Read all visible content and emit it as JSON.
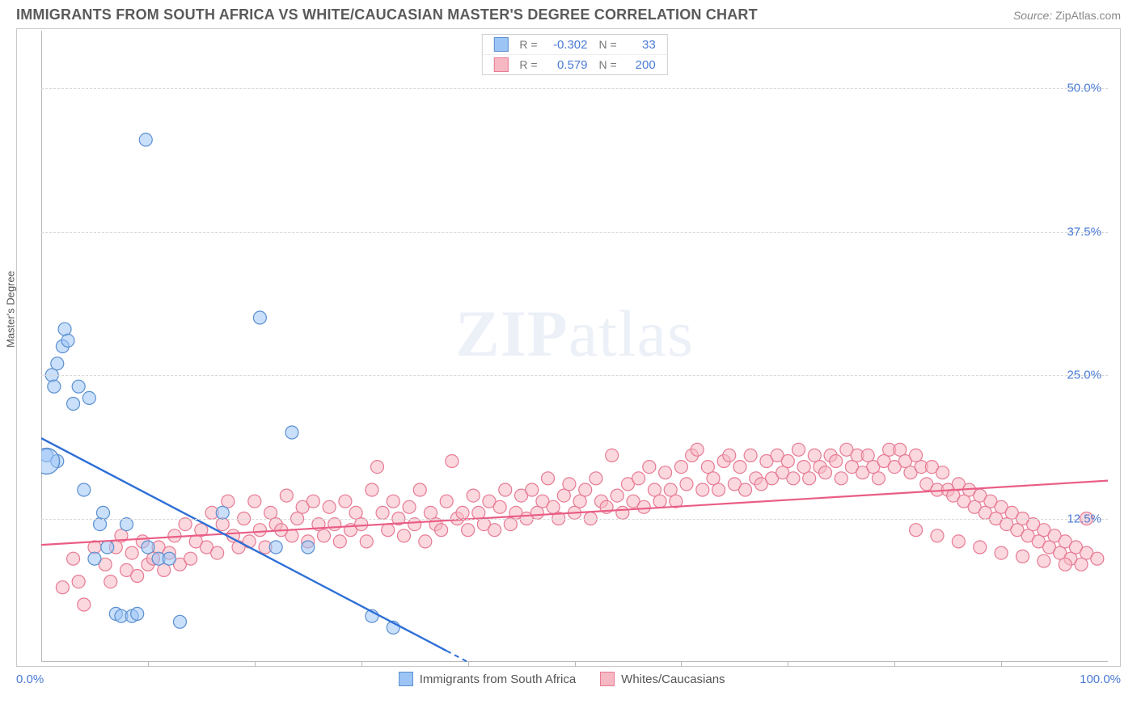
{
  "header": {
    "title": "IMMIGRANTS FROM SOUTH AFRICA VS WHITE/CAUCASIAN MASTER'S DEGREE CORRELATION CHART",
    "source_label": "Source:",
    "source_value": "ZipAtlas.com"
  },
  "watermark": {
    "left": "ZIP",
    "right": "atlas"
  },
  "chart": {
    "type": "scatter",
    "ylabel": "Master's Degree",
    "xlim": [
      0,
      100
    ],
    "ylim": [
      0,
      55
    ],
    "xaxis_label_left": "0.0%",
    "xaxis_label_right": "100.0%",
    "yticks": [
      12.5,
      25.0,
      37.5,
      50.0
    ],
    "ytick_labels": [
      "12.5%",
      "25.0%",
      "37.5%",
      "50.0%"
    ],
    "grid_color": "#d8d8d8",
    "background_color": "#ffffff",
    "xticks_count": 10,
    "series_a": {
      "name": "Immigrants from South Africa",
      "color": "#9cc4f5",
      "stroke": "#5a8fd0",
      "line_color": "#2e6fd6",
      "r": "-0.302",
      "n": "33",
      "reg": {
        "x1": 0,
        "y1": 19.5,
        "x2": 40,
        "y2": 0
      },
      "marker_r": 8,
      "points": [
        [
          0.5,
          18
        ],
        [
          1,
          25
        ],
        [
          1.2,
          24
        ],
        [
          1.5,
          26
        ],
        [
          2,
          27.5
        ],
        [
          2.2,
          29
        ],
        [
          2.5,
          28
        ],
        [
          3,
          22.5
        ],
        [
          3.5,
          24
        ],
        [
          4,
          15
        ],
        [
          4.5,
          23
        ],
        [
          5,
          9
        ],
        [
          5.5,
          12
        ],
        [
          5.8,
          13
        ],
        [
          6.2,
          10
        ],
        [
          7,
          4.2
        ],
        [
          7.5,
          4
        ],
        [
          8,
          12
        ],
        [
          8.5,
          4
        ],
        [
          9,
          4.2
        ],
        [
          9.8,
          45.5
        ],
        [
          10,
          10
        ],
        [
          11,
          9
        ],
        [
          12,
          9
        ],
        [
          13,
          3.5
        ],
        [
          17,
          13
        ],
        [
          20.5,
          30
        ],
        [
          22,
          10
        ],
        [
          23.5,
          20
        ],
        [
          25,
          10
        ],
        [
          31,
          4
        ],
        [
          33,
          3
        ],
        [
          1.5,
          17.5
        ]
      ],
      "large_point": [
        0.5,
        17.5
      ]
    },
    "series_b": {
      "name": "Whites/Caucasians",
      "color": "#f6b8c3",
      "stroke": "#e77a93",
      "line_color": "#ea5d85",
      "r": "0.579",
      "n": "200",
      "reg": {
        "x1": 0,
        "y1": 10.2,
        "x2": 100,
        "y2": 15.8
      },
      "marker_r": 8,
      "points": [
        [
          2,
          6.5
        ],
        [
          3,
          9
        ],
        [
          3.5,
          7
        ],
        [
          4,
          5
        ],
        [
          5,
          10
        ],
        [
          6,
          8.5
        ],
        [
          6.5,
          7
        ],
        [
          7,
          10
        ],
        [
          7.5,
          11
        ],
        [
          8,
          8
        ],
        [
          8.5,
          9.5
        ],
        [
          9,
          7.5
        ],
        [
          9.5,
          10.5
        ],
        [
          10,
          8.5
        ],
        [
          10.5,
          9
        ],
        [
          11,
          10
        ],
        [
          11.5,
          8
        ],
        [
          12,
          9.5
        ],
        [
          12.5,
          11
        ],
        [
          13,
          8.5
        ],
        [
          13.5,
          12
        ],
        [
          14,
          9
        ],
        [
          14.5,
          10.5
        ],
        [
          15,
          11.5
        ],
        [
          15.5,
          10
        ],
        [
          16,
          13
        ],
        [
          16.5,
          9.5
        ],
        [
          17,
          12
        ],
        [
          17.5,
          14
        ],
        [
          18,
          11
        ],
        [
          18.5,
          10
        ],
        [
          19,
          12.5
        ],
        [
          19.5,
          10.5
        ],
        [
          20,
          14
        ],
        [
          20.5,
          11.5
        ],
        [
          21,
          10
        ],
        [
          21.5,
          13
        ],
        [
          22,
          12
        ],
        [
          22.5,
          11.5
        ],
        [
          23,
          14.5
        ],
        [
          23.5,
          11
        ],
        [
          24,
          12.5
        ],
        [
          24.5,
          13.5
        ],
        [
          25,
          10.5
        ],
        [
          25.5,
          14
        ],
        [
          26,
          12
        ],
        [
          26.5,
          11
        ],
        [
          27,
          13.5
        ],
        [
          27.5,
          12
        ],
        [
          28,
          10.5
        ],
        [
          28.5,
          14
        ],
        [
          29,
          11.5
        ],
        [
          29.5,
          13
        ],
        [
          30,
          12
        ],
        [
          30.5,
          10.5
        ],
        [
          31,
          15
        ],
        [
          31.5,
          17
        ],
        [
          32,
          13
        ],
        [
          32.5,
          11.5
        ],
        [
          33,
          14
        ],
        [
          33.5,
          12.5
        ],
        [
          34,
          11
        ],
        [
          34.5,
          13.5
        ],
        [
          35,
          12
        ],
        [
          35.5,
          15
        ],
        [
          36,
          10.5
        ],
        [
          36.5,
          13
        ],
        [
          37,
          12
        ],
        [
          37.5,
          11.5
        ],
        [
          38,
          14
        ],
        [
          38.5,
          17.5
        ],
        [
          39,
          12.5
        ],
        [
          39.5,
          13
        ],
        [
          40,
          11.5
        ],
        [
          40.5,
          14.5
        ],
        [
          41,
          13
        ],
        [
          41.5,
          12
        ],
        [
          42,
          14
        ],
        [
          42.5,
          11.5
        ],
        [
          43,
          13.5
        ],
        [
          43.5,
          15
        ],
        [
          44,
          12
        ],
        [
          44.5,
          13
        ],
        [
          45,
          14.5
        ],
        [
          45.5,
          12.5
        ],
        [
          46,
          15
        ],
        [
          46.5,
          13
        ],
        [
          47,
          14
        ],
        [
          47.5,
          16
        ],
        [
          48,
          13.5
        ],
        [
          48.5,
          12.5
        ],
        [
          49,
          14.5
        ],
        [
          49.5,
          15.5
        ],
        [
          50,
          13
        ],
        [
          50.5,
          14
        ],
        [
          51,
          15
        ],
        [
          51.5,
          12.5
        ],
        [
          52,
          16
        ],
        [
          52.5,
          14
        ],
        [
          53,
          13.5
        ],
        [
          53.5,
          18
        ],
        [
          54,
          14.5
        ],
        [
          54.5,
          13
        ],
        [
          55,
          15.5
        ],
        [
          55.5,
          14
        ],
        [
          56,
          16
        ],
        [
          56.5,
          13.5
        ],
        [
          57,
          17
        ],
        [
          57.5,
          15
        ],
        [
          58,
          14
        ],
        [
          58.5,
          16.5
        ],
        [
          59,
          15
        ],
        [
          59.5,
          14
        ],
        [
          60,
          17
        ],
        [
          60.5,
          15.5
        ],
        [
          61,
          18
        ],
        [
          61.5,
          18.5
        ],
        [
          62,
          15
        ],
        [
          62.5,
          17
        ],
        [
          63,
          16
        ],
        [
          63.5,
          15
        ],
        [
          64,
          17.5
        ],
        [
          64.5,
          18
        ],
        [
          65,
          15.5
        ],
        [
          65.5,
          17
        ],
        [
          66,
          15
        ],
        [
          66.5,
          18
        ],
        [
          67,
          16
        ],
        [
          67.5,
          15.5
        ],
        [
          68,
          17.5
        ],
        [
          68.5,
          16
        ],
        [
          69,
          18
        ],
        [
          69.5,
          16.5
        ],
        [
          70,
          17.5
        ],
        [
          70.5,
          16
        ],
        [
          71,
          18.5
        ],
        [
          71.5,
          17
        ],
        [
          72,
          16
        ],
        [
          72.5,
          18
        ],
        [
          73,
          17
        ],
        [
          73.5,
          16.5
        ],
        [
          74,
          18
        ],
        [
          74.5,
          17.5
        ],
        [
          75,
          16
        ],
        [
          75.5,
          18.5
        ],
        [
          76,
          17
        ],
        [
          76.5,
          18
        ],
        [
          77,
          16.5
        ],
        [
          77.5,
          18
        ],
        [
          78,
          17
        ],
        [
          78.5,
          16
        ],
        [
          79,
          17.5
        ],
        [
          79.5,
          18.5
        ],
        [
          80,
          17
        ],
        [
          80.5,
          18.5
        ],
        [
          81,
          17.5
        ],
        [
          81.5,
          16.5
        ],
        [
          82,
          18
        ],
        [
          82.5,
          17
        ],
        [
          83,
          15.5
        ],
        [
          83.5,
          17
        ],
        [
          84,
          15
        ],
        [
          84.5,
          16.5
        ],
        [
          85,
          15
        ],
        [
          85.5,
          14.5
        ],
        [
          86,
          15.5
        ],
        [
          86.5,
          14
        ],
        [
          87,
          15
        ],
        [
          87.5,
          13.5
        ],
        [
          88,
          14.5
        ],
        [
          88.5,
          13
        ],
        [
          89,
          14
        ],
        [
          89.5,
          12.5
        ],
        [
          90,
          13.5
        ],
        [
          90.5,
          12
        ],
        [
          91,
          13
        ],
        [
          91.5,
          11.5
        ],
        [
          92,
          12.5
        ],
        [
          92.5,
          11
        ],
        [
          93,
          12
        ],
        [
          93.5,
          10.5
        ],
        [
          94,
          11.5
        ],
        [
          94.5,
          10
        ],
        [
          95,
          11
        ],
        [
          95.5,
          9.5
        ],
        [
          96,
          10.5
        ],
        [
          96.5,
          9
        ],
        [
          97,
          10
        ],
        [
          97.5,
          8.5
        ],
        [
          98,
          9.5
        ],
        [
          98,
          12.5
        ],
        [
          99,
          9
        ],
        [
          96,
          8.5
        ],
        [
          94,
          8.8
        ],
        [
          92,
          9.2
        ],
        [
          90,
          9.5
        ],
        [
          88,
          10
        ],
        [
          86,
          10.5
        ],
        [
          84,
          11
        ],
        [
          82,
          11.5
        ]
      ]
    }
  }
}
